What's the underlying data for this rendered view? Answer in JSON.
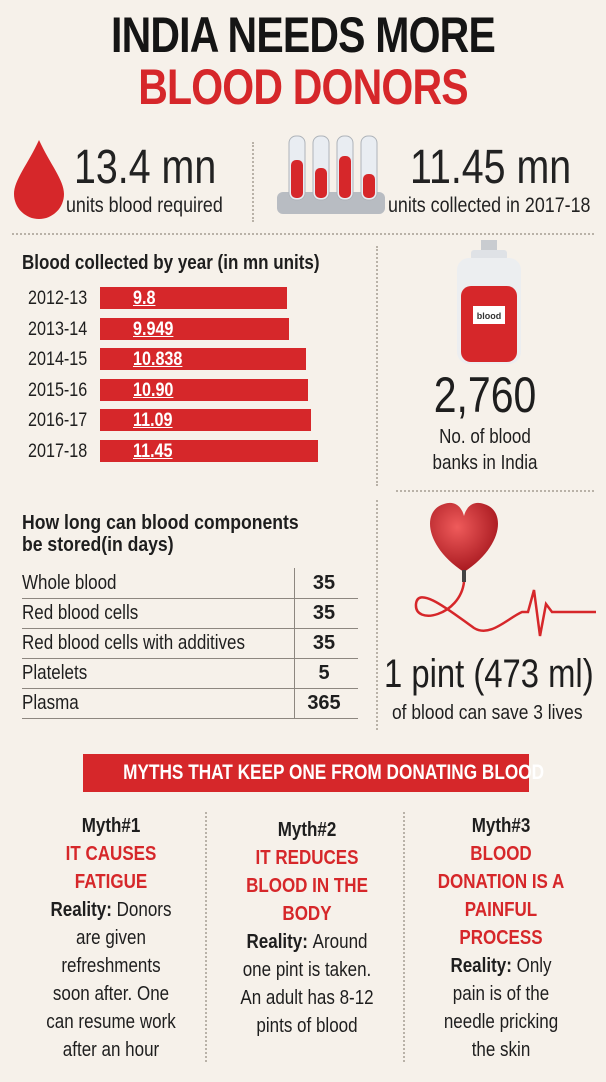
{
  "header": {
    "line1": "INDIA NEEDS MORE",
    "line2": "BLOOD DONORS"
  },
  "stats": {
    "required_value": "13.4 mn",
    "required_label": "units blood required",
    "collected_value": "11.45 mn",
    "collected_label": "units collected in 2017-18"
  },
  "colors": {
    "accent": "#d6272a",
    "background": "#f6f1ea",
    "text": "#1e1e1e"
  },
  "chart_data": {
    "type": "bar",
    "orientation": "horizontal",
    "title": "Blood collected by year (in mn units)",
    "categories": [
      "2012-13",
      "2013-14",
      "2014-15",
      "2015-16",
      "2016-17",
      "2017-18"
    ],
    "values": [
      9.8,
      9.949,
      10.838,
      10.9,
      11.09,
      11.45
    ],
    "value_labels": [
      "9.8",
      "9.949",
      "10.838",
      "10.90",
      "11.09",
      "11.45"
    ],
    "xlim": [
      0,
      11.45
    ],
    "grid": false,
    "legend": "none"
  },
  "blood_banks": {
    "value": "2,760",
    "label_line1": "No. of blood",
    "label_line2": "banks in India",
    "bag_text": "blood"
  },
  "storage": {
    "title_line1": "How long can blood components",
    "title_line2": "be stored(in days)",
    "rows": [
      {
        "name": "Whole blood",
        "days": "35"
      },
      {
        "name": "Red blood cells",
        "days": "35"
      },
      {
        "name": "Red blood cells with additives",
        "days": "35"
      },
      {
        "name": "Platelets",
        "days": "5"
      },
      {
        "name": "Plasma",
        "days": "365"
      }
    ]
  },
  "pint": {
    "value": "1 pint (473 ml)",
    "label": "of blood can save 3 lives"
  },
  "myths": {
    "banner": "MYTHS THAT KEEP ONE FROM DONATING BLOOD",
    "items": [
      {
        "label": "Myth#1",
        "myth_lines": [
          "IT CAUSES",
          "FATIGUE"
        ],
        "reality_prefix": "Reality:",
        "reality_lines": [
          "Donors",
          "are given",
          "refreshments",
          "soon after. One",
          "can resume work",
          "after an hour"
        ]
      },
      {
        "label": "Myth#2",
        "myth_lines": [
          "IT REDUCES",
          "BLOOD IN THE",
          "BODY"
        ],
        "reality_prefix": "Reality:",
        "reality_lines": [
          "Around",
          "one pint is taken.",
          "An adult has 8-12",
          "pints of blood"
        ]
      },
      {
        "label": "Myth#3",
        "myth_lines": [
          "BLOOD",
          "DONATION IS A",
          "PAINFUL",
          "PROCESS"
        ],
        "reality_prefix": "Reality:",
        "reality_lines": [
          "Only",
          "pain is of the",
          "needle pricking",
          "the skin"
        ]
      }
    ]
  }
}
